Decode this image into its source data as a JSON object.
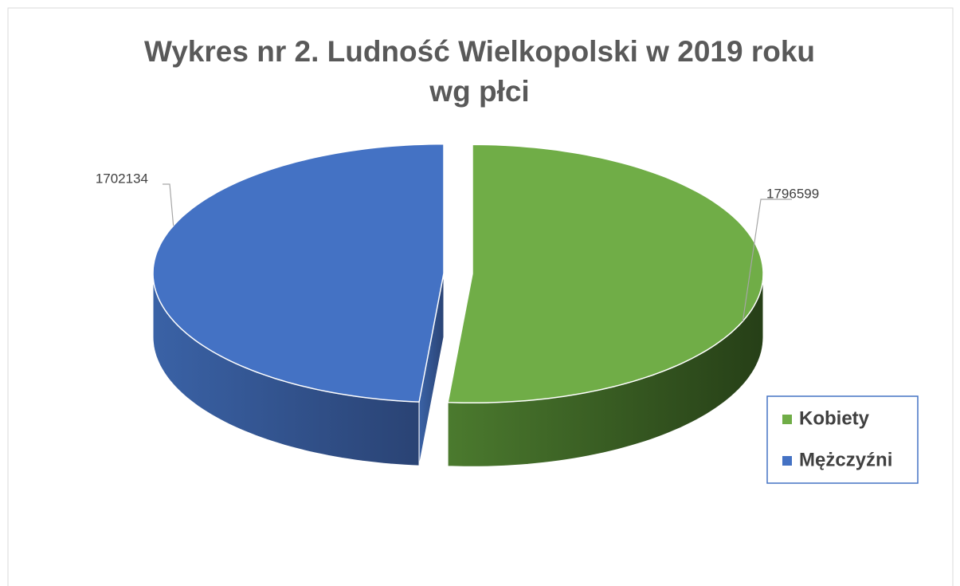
{
  "chart_data": {
    "type": "pie3d",
    "title": "Wykres nr 2. Ludność Wielkopolski w 2019 roku wg płci",
    "categories": [
      "Kobiety",
      "Mężczyźni"
    ],
    "values": [
      1796599,
      1702134
    ],
    "colors": [
      "#70ad47",
      "#4472c4"
    ],
    "legend": "right"
  }
}
